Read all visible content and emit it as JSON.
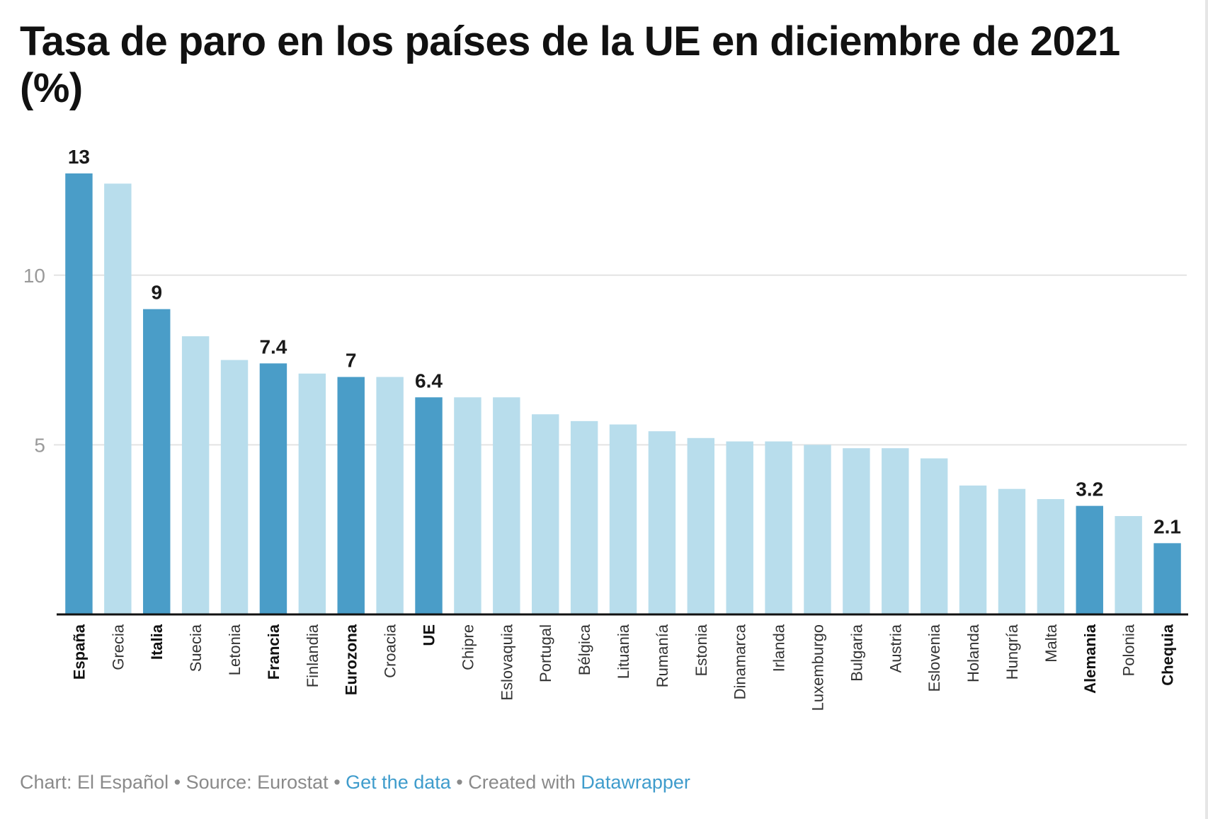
{
  "chart_data": {
    "type": "bar",
    "title": "Tasa de paro en los países de la UE en diciembre de 2021 (%)",
    "xlabel": "",
    "ylabel": "",
    "ylim": [
      0,
      13
    ],
    "yticks": [
      5,
      10
    ],
    "grid": true,
    "categories": [
      "España",
      "Grecia",
      "Italia",
      "Suecia",
      "Letonia",
      "Francia",
      "Finlandia",
      "Eurozona",
      "Croacia",
      "UE",
      "Chipre",
      "Eslovaquia",
      "Portugal",
      "Bélgica",
      "Lituania",
      "Rumanía",
      "Estonia",
      "Dinamarca",
      "Irlanda",
      "Luxemburgo",
      "Bulgaria",
      "Austria",
      "Eslovenia",
      "Holanda",
      "Hungría",
      "Malta",
      "Alemania",
      "Polonia",
      "Chequia"
    ],
    "values": [
      13,
      12.7,
      9,
      8.2,
      7.5,
      7.4,
      7.1,
      7,
      7,
      6.4,
      6.4,
      6.4,
      5.9,
      5.7,
      5.6,
      5.4,
      5.2,
      5.1,
      5.1,
      5,
      4.9,
      4.9,
      4.6,
      3.8,
      3.7,
      3.4,
      3.2,
      2.9,
      2.1
    ],
    "highlighted": [
      "España",
      "Italia",
      "Francia",
      "Eurozona",
      "UE",
      "Alemania",
      "Chequia"
    ],
    "data_labels": {
      "España": "13",
      "Italia": "9",
      "Francia": "7.4",
      "Eurozona": "7",
      "UE": "6.4",
      "Alemania": "3.2",
      "Chequia": "2.1"
    },
    "colors": {
      "highlight": "#4a9dc8",
      "default": "#b8ddec",
      "grid": "#e3e3e3",
      "axis": "#111111",
      "tick_label": "#9a9a9a"
    }
  },
  "footer": {
    "chart_credit": "Chart: El Español",
    "sep1": " • ",
    "source": "Source: Eurostat",
    "sep2": " • ",
    "get_data_link": "Get the data",
    "sep3": " • ",
    "created_with": "Created with ",
    "datawrapper_link": "Datawrapper"
  }
}
